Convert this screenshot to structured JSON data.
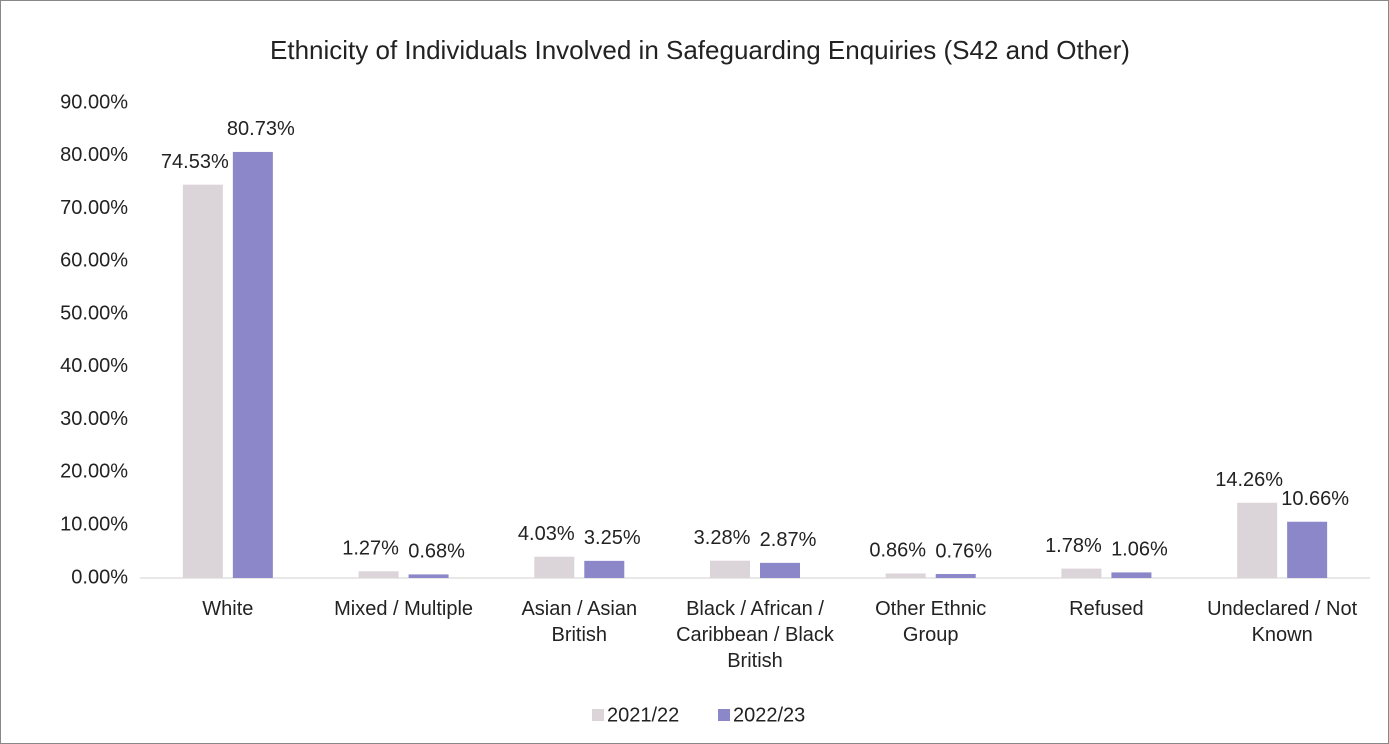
{
  "chart_data": {
    "type": "bar",
    "title": "Ethnicity of Individuals Involved in Safeguarding Enquiries (S42 and Other)",
    "categories": [
      "White",
      "Mixed / Multiple",
      "Asian / Asian British",
      "Black / African / Caribbean / Black British",
      "Other Ethnic Group",
      "Refused",
      "Undeclared / Not Known"
    ],
    "series": [
      {
        "name": "2021/22",
        "color": "#dbd5da",
        "values": [
          74.53,
          1.27,
          4.03,
          3.28,
          0.86,
          1.78,
          14.26
        ],
        "value_labels": [
          "74.53%",
          "1.27%",
          "4.03%",
          "3.28%",
          "0.86%",
          "1.78%",
          "14.26%"
        ]
      },
      {
        "name": "2022/23",
        "color": "#8b87c9",
        "values": [
          80.73,
          0.68,
          3.25,
          2.87,
          0.76,
          1.06,
          10.66
        ],
        "value_labels": [
          "80.73%",
          "0.68%",
          "3.25%",
          "2.87%",
          "0.76%",
          "1.06%",
          "10.66%"
        ]
      }
    ],
    "ylim": [
      0,
      90
    ],
    "yticks": [
      {
        "value": 0,
        "label": "0.00%"
      },
      {
        "value": 10,
        "label": "10.00%"
      },
      {
        "value": 20,
        "label": "20.00%"
      },
      {
        "value": 30,
        "label": "30.00%"
      },
      {
        "value": 40,
        "label": "40.00%"
      },
      {
        "value": 50,
        "label": "50.00%"
      },
      {
        "value": 60,
        "label": "60.00%"
      },
      {
        "value": 70,
        "label": "70.00%"
      },
      {
        "value": 80,
        "label": "80.00%"
      },
      {
        "value": 90,
        "label": "90.00%"
      }
    ],
    "grid": false,
    "legend": "bottom"
  }
}
